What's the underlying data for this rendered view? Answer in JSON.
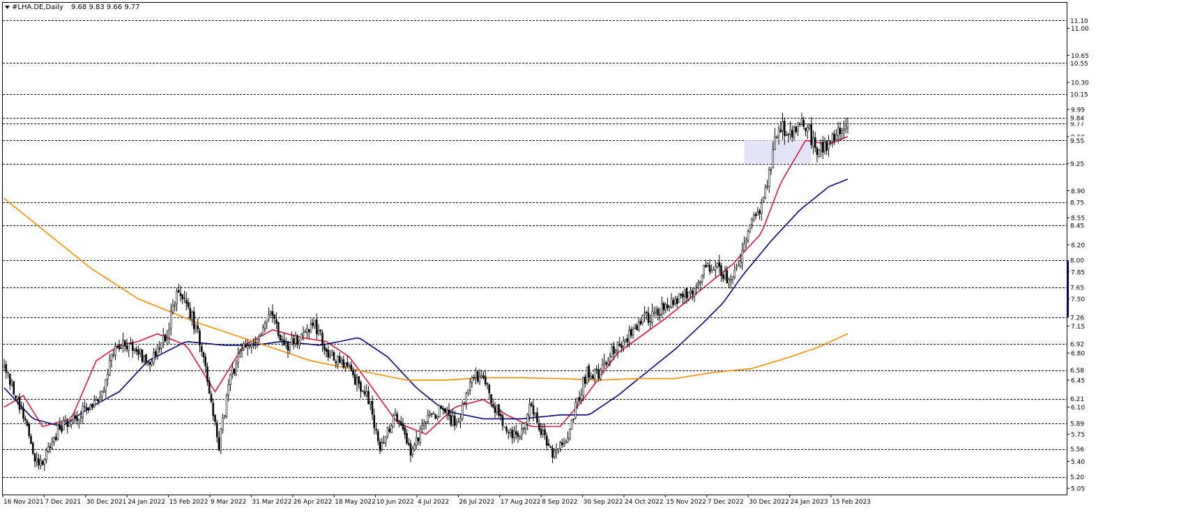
{
  "header": {
    "symbol": "#LHA.DE,Daily",
    "ohlc": "9.68 9.83 9.66 9.77"
  },
  "colors": {
    "candle_up": "#ffffff",
    "candle_down": "#000000",
    "ma_fast": "#dc143c",
    "ma_mid": "#00007f",
    "ma_slow": "#ff8c00",
    "zone": "#e4e4f8",
    "grid": "#000000",
    "current_marker": "#00007f"
  },
  "chart_data": {
    "type": "candlestick",
    "title": "#LHA.DE,Daily",
    "ylim": [
      4.97,
      11.33
    ],
    "grid": "horizontal dashed at marked levels",
    "y_ticks": [
      "5.05",
      "5.40",
      "5.75",
      "6.10",
      "6.45",
      "6.80",
      "7.15",
      "7.50",
      "7.85",
      "8.20",
      "8.55",
      "8.90",
      "9.25",
      "9.60",
      "9.95",
      "10.30",
      "10.65",
      "11.00"
    ],
    "y_levels": [
      "5.20",
      "5.56",
      "5.89",
      "6.21",
      "6.58",
      "6.92",
      "7.26",
      "7.65",
      "8.00",
      "8.45",
      "8.75",
      "9.25",
      "9.55",
      "9.77",
      "9.84",
      "10.15",
      "10.55",
      "11.10"
    ],
    "x_ticks": [
      "16 Nov 2021",
      "7 Dec 2021",
      "30 Dec 2021",
      "24 Jan 2022",
      "15 Feb 2022",
      "9 Mar 2022",
      "31 Mar 2022",
      "26 Apr 2022",
      "18 May 2022",
      "10 Jun 2022",
      "4 Jul 2022",
      "26 Jul 2022",
      "17 Aug 2022",
      "8 Sep 2022",
      "30 Sep 2022",
      "24 Oct 2022",
      "15 Nov 2022",
      "7 Dec 2022",
      "30 Dec 2022",
      "24 Jan 2023",
      "15 Feb 2023"
    ],
    "price_anchors": [
      [
        0,
        6.6
      ],
      [
        8,
        6.15
      ],
      [
        18,
        5.3
      ],
      [
        28,
        5.8
      ],
      [
        38,
        6.0
      ],
      [
        50,
        6.2
      ],
      [
        58,
        6.95
      ],
      [
        68,
        6.85
      ],
      [
        76,
        6.65
      ],
      [
        85,
        7.05
      ],
      [
        90,
        7.6
      ],
      [
        98,
        7.25
      ],
      [
        103,
        6.9
      ],
      [
        108,
        6.2
      ],
      [
        112,
        5.6
      ],
      [
        118,
        6.5
      ],
      [
        125,
        6.9
      ],
      [
        133,
        7.0
      ],
      [
        138,
        7.35
      ],
      [
        146,
        6.85
      ],
      [
        154,
        7.0
      ],
      [
        162,
        7.2
      ],
      [
        168,
        6.8
      ],
      [
        176,
        6.65
      ],
      [
        184,
        6.45
      ],
      [
        190,
        6.2
      ],
      [
        196,
        5.55
      ],
      [
        204,
        6.0
      ],
      [
        212,
        5.55
      ],
      [
        220,
        5.9
      ],
      [
        228,
        6.1
      ],
      [
        236,
        5.85
      ],
      [
        244,
        6.55
      ],
      [
        250,
        6.45
      ],
      [
        256,
        6.1
      ],
      [
        262,
        5.85
      ],
      [
        268,
        5.7
      ],
      [
        274,
        6.1
      ],
      [
        280,
        5.8
      ],
      [
        286,
        5.5
      ],
      [
        294,
        5.7
      ],
      [
        298,
        6.1
      ],
      [
        304,
        6.55
      ],
      [
        310,
        6.55
      ],
      [
        318,
        6.85
      ],
      [
        326,
        7.05
      ],
      [
        334,
        7.25
      ],
      [
        342,
        7.35
      ],
      [
        350,
        7.45
      ],
      [
        358,
        7.6
      ],
      [
        364,
        7.85
      ],
      [
        372,
        7.95
      ],
      [
        378,
        7.7
      ],
      [
        384,
        8.05
      ],
      [
        390,
        8.45
      ],
      [
        396,
        8.75
      ],
      [
        400,
        9.25
      ],
      [
        404,
        9.75
      ],
      [
        410,
        9.6
      ],
      [
        416,
        9.85
      ],
      [
        420,
        9.65
      ],
      [
        424,
        9.35
      ],
      [
        428,
        9.5
      ],
      [
        432,
        9.55
      ],
      [
        436,
        9.65
      ],
      [
        440,
        9.77
      ]
    ],
    "series": [
      {
        "name": "",
        "anchors": [
          [
            0,
            6.1
          ],
          [
            10,
            6.25
          ],
          [
            20,
            5.85
          ],
          [
            35,
            5.95
          ],
          [
            48,
            6.7
          ],
          [
            60,
            6.9
          ],
          [
            70,
            6.95
          ],
          [
            80,
            7.05
          ],
          [
            95,
            6.9
          ],
          [
            110,
            6.3
          ],
          [
            125,
            6.9
          ],
          [
            140,
            7.1
          ],
          [
            155,
            7.0
          ],
          [
            168,
            6.95
          ],
          [
            180,
            6.75
          ],
          [
            192,
            6.35
          ],
          [
            205,
            5.9
          ],
          [
            220,
            5.75
          ],
          [
            235,
            6.1
          ],
          [
            250,
            6.2
          ],
          [
            262,
            6.0
          ],
          [
            275,
            5.85
          ],
          [
            290,
            5.85
          ],
          [
            302,
            6.2
          ],
          [
            320,
            6.8
          ],
          [
            345,
            7.25
          ],
          [
            365,
            7.65
          ],
          [
            380,
            7.95
          ],
          [
            395,
            8.35
          ],
          [
            405,
            9.0
          ],
          [
            418,
            9.55
          ],
          [
            430,
            9.5
          ],
          [
            440,
            9.6
          ]
        ]
      },
      {
        "name": "",
        "anchors": [
          [
            0,
            6.35
          ],
          [
            15,
            5.95
          ],
          [
            30,
            5.85
          ],
          [
            45,
            6.1
          ],
          [
            60,
            6.3
          ],
          [
            75,
            6.7
          ],
          [
            95,
            6.95
          ],
          [
            115,
            6.9
          ],
          [
            130,
            6.9
          ],
          [
            145,
            6.95
          ],
          [
            165,
            6.9
          ],
          [
            185,
            7.0
          ],
          [
            200,
            6.75
          ],
          [
            215,
            6.35
          ],
          [
            230,
            6.05
          ],
          [
            250,
            5.95
          ],
          [
            270,
            5.95
          ],
          [
            290,
            6.0
          ],
          [
            305,
            6.0
          ],
          [
            320,
            6.25
          ],
          [
            335,
            6.55
          ],
          [
            350,
            6.85
          ],
          [
            365,
            7.2
          ],
          [
            375,
            7.45
          ],
          [
            385,
            7.8
          ],
          [
            400,
            8.25
          ],
          [
            415,
            8.65
          ],
          [
            430,
            8.95
          ],
          [
            440,
            9.05
          ]
        ]
      },
      {
        "name": "",
        "anchors": [
          [
            0,
            8.8
          ],
          [
            20,
            8.4
          ],
          [
            45,
            7.9
          ],
          [
            70,
            7.5
          ],
          [
            100,
            7.2
          ],
          [
            130,
            6.95
          ],
          [
            160,
            6.7
          ],
          [
            190,
            6.55
          ],
          [
            210,
            6.45
          ],
          [
            230,
            6.45
          ],
          [
            250,
            6.48
          ],
          [
            270,
            6.48
          ],
          [
            290,
            6.47
          ],
          [
            310,
            6.45
          ],
          [
            330,
            6.47
          ],
          [
            350,
            6.47
          ],
          [
            370,
            6.55
          ],
          [
            390,
            6.6
          ],
          [
            410,
            6.75
          ],
          [
            425,
            6.88
          ],
          [
            440,
            7.05
          ]
        ]
      }
    ],
    "zone": {
      "x_start": 386,
      "x_end": 421,
      "y_low": 9.25,
      "y_high": 9.55
    },
    "current_price": "9.77",
    "current_levels": [
      [
        7.26,
        8.0
      ]
    ]
  }
}
